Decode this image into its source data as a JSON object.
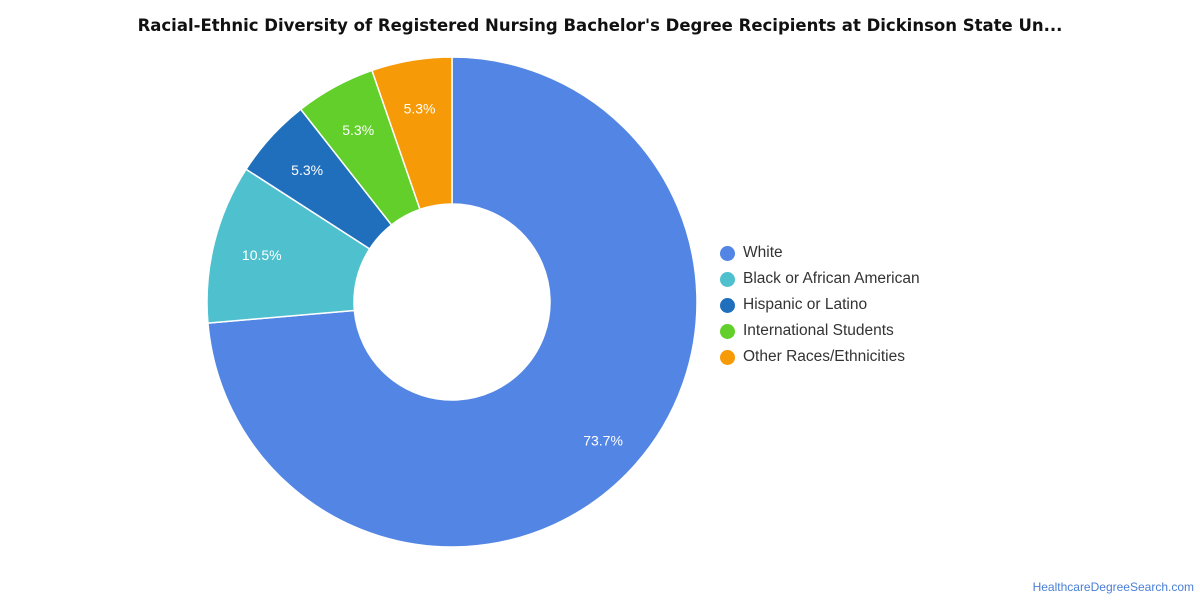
{
  "title": "Racial-Ethnic Diversity of Registered Nursing Bachelor's Degree Recipients at Dickinson State Un...",
  "credit": "HealthcareDegreeSearch.com",
  "chart_data": {
    "type": "pie",
    "donut": true,
    "legend_position": "right",
    "slices": [
      {
        "label": "White",
        "value": 73.7,
        "display": "73.7%",
        "color": "#5386e4"
      },
      {
        "label": "Black or African American",
        "value": 10.5,
        "display": "10.5%",
        "color": "#4fc1ce"
      },
      {
        "label": "Hispanic or Latino",
        "value": 5.3,
        "display": "5.3%",
        "color": "#1f6fbd"
      },
      {
        "label": "International Students",
        "value": 5.3,
        "display": "5.3%",
        "color": "#63cf2a"
      },
      {
        "label": "Other Races/Ethnicities",
        "value": 5.3,
        "display": "5.3%",
        "color": "#f79a08"
      }
    ]
  }
}
